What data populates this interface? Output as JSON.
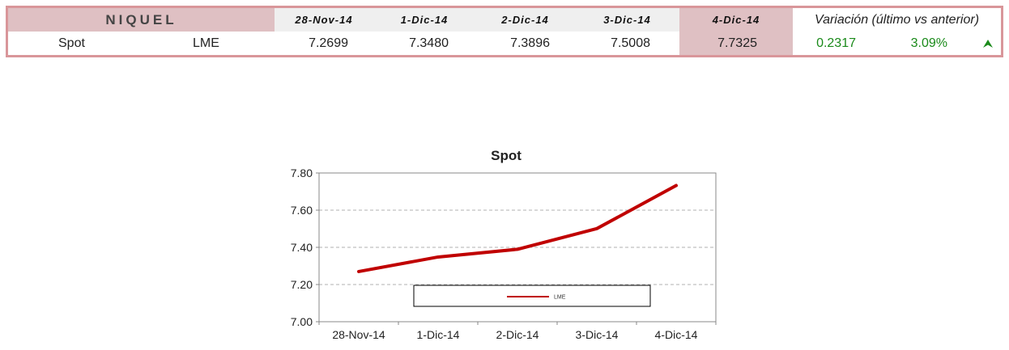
{
  "table": {
    "metal": "NIQUEL",
    "dates": [
      "28-Nov-14",
      "1-Dic-14",
      "2-Dic-14",
      "3-Dic-14",
      "4-Dic-14"
    ],
    "variation_header": "Variación (último vs anterior)",
    "row": {
      "label": "Spot",
      "market": "LME",
      "values": [
        "7.2699",
        "7.3480",
        "7.3896",
        "7.5008",
        "7.7325"
      ],
      "change_abs": "0.2317",
      "change_pct": "3.09%",
      "trend_icon": "up-triangle-icon"
    },
    "colors": {
      "border": "#d9969a",
      "highlight": "#dfc0c3",
      "header_bg": "#efefef",
      "positive": "#1a8a1a"
    }
  },
  "chart_data": {
    "type": "line",
    "title": "Spot",
    "categories": [
      "28-Nov-14",
      "1-Dic-14",
      "2-Dic-14",
      "3-Dic-14",
      "4-Dic-14"
    ],
    "series": [
      {
        "name": "LME",
        "values": [
          7.2699,
          7.348,
          7.3896,
          7.5008,
          7.7325
        ],
        "color": "#c00000"
      }
    ],
    "ylim": [
      7.0,
      7.8
    ],
    "yticks": [
      "7.00",
      "7.20",
      "7.40",
      "7.60",
      "7.80"
    ],
    "grid": "horizontal dashed",
    "legend": "inside-bottom-center"
  }
}
